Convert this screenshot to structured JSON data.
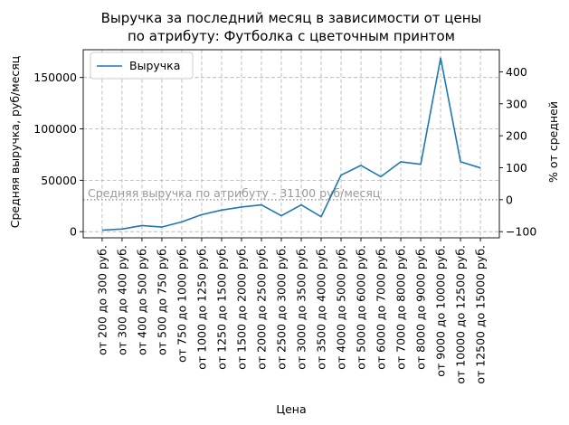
{
  "chart_data": {
    "type": "line",
    "title_lines": [
      "Выручка за последний месяц в зависимости от цены",
      "по атрибуту: Футболка с цветочным принтом"
    ],
    "xlabel": "Цена",
    "ylabel": "Средняя выручка, руб/месяц",
    "ylabel_right": "% от средней",
    "categories": [
      "от 200 до 300 руб.",
      "от 300 до 400 руб.",
      "от 400 до 500 руб.",
      "от 500 до 750 руб.",
      "от 750 до 1000 руб.",
      "от 1000 до 1250 руб.",
      "от 1250 до 1500 руб.",
      "от 1500 до 2000 руб.",
      "от 2000 до 2500 руб.",
      "от 2500 до 3000 руб.",
      "от 3000 до 3500 руб.",
      "от 3500 до 4000 руб.",
      "от 4000 до 5000 руб.",
      "от 5000 до 6000 руб.",
      "от 6000 до 7000 руб.",
      "от 7000 до 8000 руб.",
      "от 8000 до 9000 руб.",
      "от 9000 до 10000 руб.",
      "от 10000 до 12500 руб.",
      "от 12500 до 15000 руб."
    ],
    "series": [
      {
        "name": "Выручка",
        "color": "#1f77b4",
        "values": [
          1500,
          2500,
          6000,
          4500,
          9500,
          16500,
          21000,
          24000,
          26000,
          15500,
          26000,
          14500,
          55000,
          64500,
          53500,
          68000,
          65500,
          169000,
          68000,
          62000
        ]
      }
    ],
    "ylim": [
      -6000,
      177000
    ],
    "yticks": [
      0,
      50000,
      100000,
      150000
    ],
    "ytick_labels": [
      "0",
      "50000",
      "100000",
      "150000"
    ],
    "y2lim": [
      -119.3,
      469.1
    ],
    "y2ticks": [
      -100,
      0,
      100,
      200,
      300,
      400
    ],
    "y2tick_labels": [
      "−100",
      "0",
      "100",
      "200",
      "300",
      "400"
    ],
    "reference_line": {
      "value": 31100,
      "label": "Средняя выручка по атрибуту - 31100 руб/месяц",
      "color": "#999999"
    },
    "grid": true,
    "legend_position": "upper-left"
  }
}
